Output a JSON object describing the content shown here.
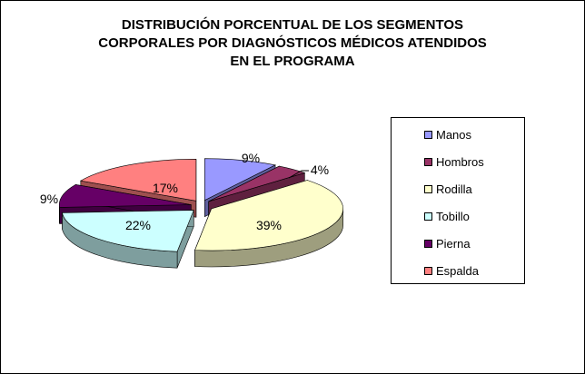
{
  "chart_data": {
    "type": "pie",
    "title": "DISTRIBUCIÓN PORCENTUAL DE LOS SEGMENTOS\nCORPORALES POR DIAGNÓSTICOS MÉDICOS ATENDIDOS\nEN EL PROGRAMA",
    "exploded": true,
    "three_d": true,
    "legend_position": "right",
    "slices": [
      {
        "label": "Manos",
        "value": 9,
        "display": "9%",
        "color": "#9999FF"
      },
      {
        "label": "Hombros",
        "value": 4,
        "display": "4%",
        "color": "#993366"
      },
      {
        "label": "Rodilla",
        "value": 39,
        "display": "39%",
        "color": "#FFFFCC"
      },
      {
        "label": "Tobillo",
        "value": 22,
        "display": "22%",
        "color": "#CCFFFF"
      },
      {
        "label": "Pierna",
        "value": 9,
        "display": "9%",
        "color": "#660066"
      },
      {
        "label": "Espalda",
        "value": 17,
        "display": "17%",
        "color": "#FF8080"
      }
    ]
  }
}
